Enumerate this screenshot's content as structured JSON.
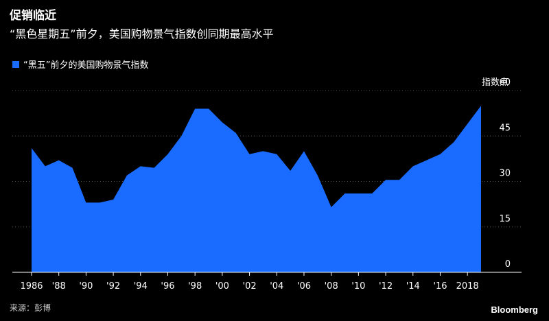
{
  "header": {
    "title": "促销临近",
    "subtitle": "“黑色星期五”前夕，美国购物景气指数创同期最高水平"
  },
  "footer": {
    "source": "来源：彭博",
    "brand": "Bloomberg"
  },
  "colors": {
    "series": "#1a6bff",
    "background": "#000000",
    "grid": "#555555"
  },
  "chart_data": {
    "type": "area",
    "title": "",
    "unit_label": "指数点",
    "xlabel": "",
    "ylabel": "",
    "ylim": [
      0,
      60
    ],
    "yticks": [
      0,
      15,
      30,
      45,
      60
    ],
    "ytick_labels": [
      "0",
      "15",
      "30",
      "45",
      "60"
    ],
    "xlim": [
      1985,
      2020
    ],
    "xticks": [
      1986,
      1988,
      1990,
      1992,
      1994,
      1996,
      1998,
      2000,
      2002,
      2004,
      2006,
      2008,
      2010,
      2012,
      2014,
      2016,
      2018
    ],
    "xtick_labels": [
      "1986",
      "'88",
      "'90",
      "'92",
      "'94",
      "'96",
      "'98",
      "'00",
      "'02",
      "'04",
      "'06",
      "'08",
      "'10",
      "'12",
      "'14",
      "'16",
      "2018"
    ],
    "legend_position": "top-left",
    "grid": "horizontal dotted",
    "series": [
      {
        "name": "“黑五”前夕的美国购物景气指数",
        "x": [
          1986,
          1987,
          1988,
          1989,
          1990,
          1991,
          1992,
          1993,
          1994,
          1995,
          1996,
          1997,
          1998,
          1999,
          2000,
          2001,
          2002,
          2003,
          2004,
          2005,
          2006,
          2007,
          2008,
          2009,
          2010,
          2011,
          2012,
          2013,
          2014,
          2015,
          2016,
          2017,
          2018,
          2019
        ],
        "values": [
          41,
          35,
          37,
          34.5,
          23,
          23,
          24,
          32,
          35,
          34.5,
          39,
          45,
          54,
          54,
          49.5,
          46,
          39,
          40,
          39,
          33.5,
          40,
          32,
          21.5,
          26,
          26,
          26,
          30.5,
          30.5,
          35,
          37,
          39,
          43,
          49,
          55
        ]
      }
    ]
  }
}
